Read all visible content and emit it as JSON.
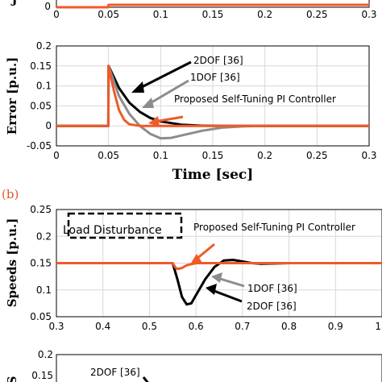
{
  "chart_data": [
    {
      "type": "line",
      "note": "top strip (cropped)",
      "x_ticks": [
        "0",
        "0.05",
        "0.1",
        "0.15",
        "0.2",
        "0.25",
        "0.3"
      ],
      "y_ticks": [
        "0"
      ],
      "xlim": [
        0,
        0.3
      ],
      "series": [
        {
          "color": "#f05a28",
          "x": [
            0,
            0.0498,
            0.05,
            0.3
          ],
          "y": [
            0,
            0,
            0.03,
            0.03
          ]
        }
      ]
    },
    {
      "type": "line",
      "xlabel": "Time [sec]",
      "ylabel": "Error [p.u.]",
      "xlim": [
        0,
        0.3
      ],
      "ylim": [
        -0.05,
        0.2
      ],
      "x_ticks": [
        "0",
        "0.05",
        "0.1",
        "0.15",
        "0.2",
        "0.25",
        "0.3"
      ],
      "y_ticks": [
        "-0.05",
        "0",
        "0.05",
        "0.1",
        "0.15",
        "0.2"
      ],
      "annotations": [
        "2DOF [36]",
        "1DOF [36]",
        "Proposed Self-Tuning PI Controller"
      ],
      "series": [
        {
          "name": "2DOF [36]",
          "color": "#000000",
          "x": [
            0,
            0.0498,
            0.05,
            0.06,
            0.07,
            0.08,
            0.09,
            0.1,
            0.12,
            0.14,
            0.16,
            0.2,
            0.3
          ],
          "y": [
            0,
            0,
            0.15,
            0.095,
            0.058,
            0.035,
            0.02,
            0.011,
            0.003,
            0.0005,
            0,
            0,
            0
          ]
        },
        {
          "name": "1DOF [36]",
          "color": "#8c8c8c",
          "x": [
            0,
            0.0498,
            0.05,
            0.06,
            0.07,
            0.08,
            0.09,
            0.1,
            0.11,
            0.12,
            0.14,
            0.16,
            0.18,
            0.2,
            0.3
          ],
          "y": [
            0,
            0,
            0.15,
            0.075,
            0.03,
            0.0,
            -0.02,
            -0.031,
            -0.03,
            -0.024,
            -0.012,
            -0.004,
            -0.001,
            0,
            0
          ]
        },
        {
          "name": "Proposed Self-Tuning PI Controller",
          "color": "#f05a28",
          "x": [
            0,
            0.0498,
            0.05,
            0.055,
            0.06,
            0.065,
            0.07,
            0.08,
            0.09,
            0.3
          ],
          "y": [
            0,
            0,
            0.15,
            0.09,
            0.04,
            0.015,
            0.004,
            0.0,
            0,
            0
          ]
        }
      ]
    },
    {
      "type": "line",
      "panel_label": "(b)",
      "ylabel": "Speeds [p.u.]",
      "xlim": [
        0.3,
        1
      ],
      "ylim": [
        0.05,
        0.25
      ],
      "x_ticks": [
        "0.3",
        "0.4",
        "0.5",
        "0.6",
        "0.7",
        "0.8",
        "0.9",
        "1"
      ],
      "y_ticks": [
        "0.05",
        "0.1",
        "0.15",
        "0.2",
        "0.25"
      ],
      "annotations": [
        "Load Disturbance",
        "Proposed Self-Tuning PI Controller",
        "1DOF [36]",
        "2DOF [36]"
      ],
      "series": [
        {
          "name": "2DOF [36]",
          "color": "#8c8c8c",
          "dashed": true,
          "x": [
            0.3,
            0.549,
            0.55,
            0.56,
            0.57,
            0.58,
            0.59,
            0.6,
            0.62,
            0.64,
            0.66,
            0.68,
            0.7,
            0.72,
            0.74,
            0.8,
            1
          ],
          "y": [
            0.15,
            0.15,
            0.15,
            0.12,
            0.087,
            0.073,
            0.075,
            0.09,
            0.12,
            0.143,
            0.155,
            0.156,
            0.153,
            0.15,
            0.149,
            0.15,
            0.15
          ]
        },
        {
          "name": "1DOF [36]",
          "color": "#000000",
          "x": [
            0.3,
            0.549,
            0.55,
            0.56,
            0.57,
            0.58,
            0.59,
            0.6,
            0.62,
            0.64,
            0.66,
            0.68,
            0.7,
            0.72,
            0.74,
            0.8,
            1
          ],
          "y": [
            0.15,
            0.15,
            0.15,
            0.12,
            0.087,
            0.073,
            0.075,
            0.09,
            0.12,
            0.143,
            0.155,
            0.156,
            0.153,
            0.15,
            0.149,
            0.15,
            0.15
          ]
        },
        {
          "name": "Proposed Self-Tuning PI Controller",
          "color": "#f05a28",
          "x": [
            0.3,
            0.549,
            0.55,
            0.555,
            0.56,
            0.57,
            0.58,
            0.6,
            1
          ],
          "y": [
            0.15,
            0.15,
            0.15,
            0.143,
            0.139,
            0.141,
            0.146,
            0.15,
            0.15
          ]
        }
      ]
    },
    {
      "type": "line",
      "note": "bottom panel (cropped)",
      "y_ticks": [
        "0.2",
        "0.15"
      ],
      "annotations": [
        "2DOF [36]"
      ]
    }
  ]
}
